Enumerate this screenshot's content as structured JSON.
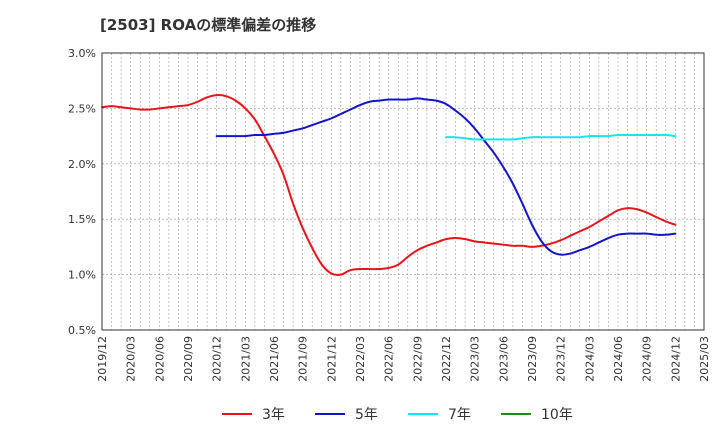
{
  "chart_data": {
    "type": "line",
    "title": "[2503]  ROAの標準偏差の推移",
    "xlabel": "",
    "ylabel": "",
    "ylim": [
      0.5,
      3.0
    ],
    "y_ticks": [
      "0.5%",
      "1.0%",
      "1.5%",
      "2.0%",
      "2.5%",
      "3.0%"
    ],
    "x_ticks": [
      "2019/12",
      "2020/03",
      "2020/06",
      "2020/09",
      "2020/12",
      "2021/03",
      "2021/06",
      "2021/09",
      "2021/12",
      "2022/03",
      "2022/06",
      "2022/09",
      "2022/12",
      "2023/03",
      "2023/06",
      "2023/09",
      "2023/12",
      "2024/03",
      "2024/06",
      "2024/09",
      "2024/12",
      "2025/03"
    ],
    "grid": true,
    "legend_position": "bottom",
    "series": [
      {
        "name": "3年",
        "color": "#e8141a",
        "x": [
          "2019/12",
          "2020/01",
          "2020/02",
          "2020/03",
          "2020/04",
          "2020/05",
          "2020/06",
          "2020/07",
          "2020/08",
          "2020/09",
          "2020/10",
          "2020/11",
          "2020/12",
          "2021/01",
          "2021/02",
          "2021/03",
          "2021/04",
          "2021/05",
          "2021/06",
          "2021/07",
          "2021/08",
          "2021/09",
          "2021/10",
          "2021/11",
          "2021/12",
          "2022/01",
          "2022/02",
          "2022/03",
          "2022/04",
          "2022/05",
          "2022/06",
          "2022/07",
          "2022/08",
          "2022/09",
          "2022/10",
          "2022/11",
          "2022/12",
          "2023/01",
          "2023/02",
          "2023/03",
          "2023/04",
          "2023/05",
          "2023/06",
          "2023/07",
          "2023/08",
          "2023/09",
          "2023/10",
          "2023/11",
          "2023/12",
          "2024/01",
          "2024/02",
          "2024/03",
          "2024/04",
          "2024/05",
          "2024/06",
          "2024/07",
          "2024/08",
          "2024/09",
          "2024/10",
          "2024/11",
          "2024/12"
        ],
        "values": [
          2.51,
          2.52,
          2.51,
          2.5,
          2.49,
          2.49,
          2.5,
          2.51,
          2.52,
          2.53,
          2.56,
          2.6,
          2.62,
          2.61,
          2.57,
          2.5,
          2.4,
          2.25,
          2.09,
          1.9,
          1.64,
          1.42,
          1.24,
          1.09,
          1.01,
          1.0,
          1.04,
          1.05,
          1.05,
          1.05,
          1.06,
          1.09,
          1.16,
          1.22,
          1.26,
          1.29,
          1.32,
          1.33,
          1.32,
          1.3,
          1.29,
          1.28,
          1.27,
          1.26,
          1.26,
          1.25,
          1.26,
          1.28,
          1.31,
          1.35,
          1.39,
          1.43,
          1.48,
          1.53,
          1.58,
          1.6,
          1.59,
          1.56,
          1.52,
          1.48,
          1.45
        ]
      },
      {
        "name": "5年",
        "color": "#1414c8",
        "x": [
          "2020/12",
          "2021/01",
          "2021/02",
          "2021/03",
          "2021/04",
          "2021/05",
          "2021/06",
          "2021/07",
          "2021/08",
          "2021/09",
          "2021/10",
          "2021/11",
          "2021/12",
          "2022/01",
          "2022/02",
          "2022/03",
          "2022/04",
          "2022/05",
          "2022/06",
          "2022/07",
          "2022/08",
          "2022/09",
          "2022/10",
          "2022/11",
          "2022/12",
          "2023/01",
          "2023/02",
          "2023/03",
          "2023/04",
          "2023/05",
          "2023/06",
          "2023/07",
          "2023/08",
          "2023/09",
          "2023/10",
          "2023/11",
          "2023/12",
          "2024/01",
          "2024/02",
          "2024/03",
          "2024/04",
          "2024/05",
          "2024/06",
          "2024/07",
          "2024/08",
          "2024/09",
          "2024/10",
          "2024/11",
          "2024/12"
        ],
        "values": [
          2.25,
          2.25,
          2.25,
          2.25,
          2.26,
          2.26,
          2.27,
          2.28,
          2.3,
          2.32,
          2.35,
          2.38,
          2.41,
          2.45,
          2.49,
          2.53,
          2.56,
          2.57,
          2.58,
          2.58,
          2.58,
          2.59,
          2.58,
          2.57,
          2.54,
          2.48,
          2.41,
          2.32,
          2.21,
          2.1,
          1.97,
          1.82,
          1.64,
          1.45,
          1.3,
          1.21,
          1.18,
          1.19,
          1.22,
          1.25,
          1.29,
          1.33,
          1.36,
          1.37,
          1.37,
          1.37,
          1.36,
          1.36,
          1.37
        ]
      },
      {
        "name": "7年",
        "color": "#14e6ec",
        "x": [
          "2022/12",
          "2023/01",
          "2023/02",
          "2023/03",
          "2023/04",
          "2023/05",
          "2023/06",
          "2023/07",
          "2023/08",
          "2023/09",
          "2023/10",
          "2023/11",
          "2023/12",
          "2024/01",
          "2024/02",
          "2024/03",
          "2024/04",
          "2024/05",
          "2024/06",
          "2024/07",
          "2024/08",
          "2024/09",
          "2024/10",
          "2024/11",
          "2024/12"
        ],
        "values": [
          2.24,
          2.24,
          2.23,
          2.22,
          2.22,
          2.22,
          2.22,
          2.22,
          2.23,
          2.24,
          2.24,
          2.24,
          2.24,
          2.24,
          2.24,
          2.25,
          2.25,
          2.25,
          2.26,
          2.26,
          2.26,
          2.26,
          2.26,
          2.26,
          2.25
        ]
      },
      {
        "name": "10年",
        "color": "#1a8c1a",
        "x": [],
        "values": []
      }
    ]
  }
}
